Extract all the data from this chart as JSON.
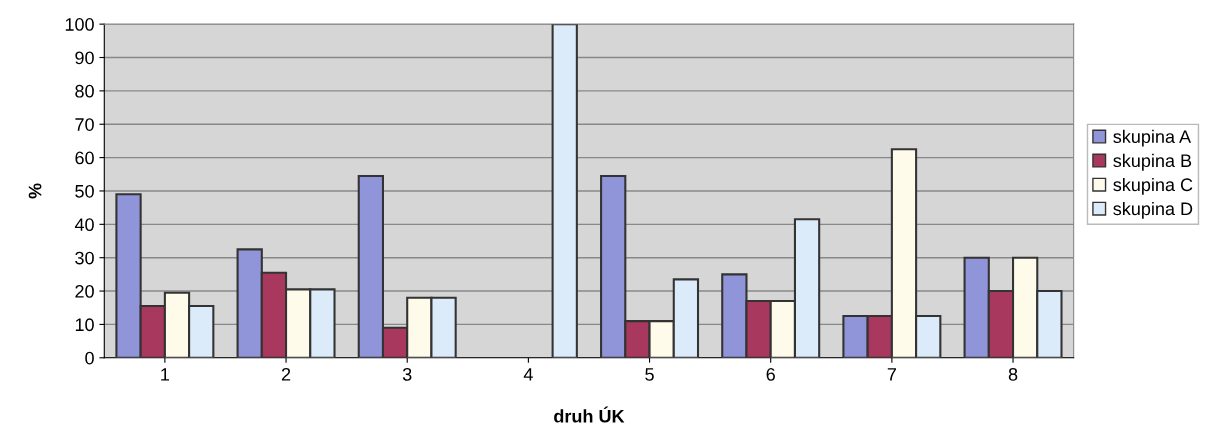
{
  "chart_data": {
    "type": "bar",
    "xlabel": "druh ÚK",
    "ylabel": "%",
    "categories": [
      "1",
      "2",
      "3",
      "4",
      "5",
      "6",
      "7",
      "8"
    ],
    "series": [
      {
        "name": "skupina A",
        "color": "#9094d8",
        "values": [
          49,
          32.5,
          54.5,
          null,
          54.5,
          25,
          12.5,
          30
        ]
      },
      {
        "name": "skupina B",
        "color": "#a8385e",
        "values": [
          15.5,
          25.5,
          9,
          null,
          11,
          17,
          12.5,
          20
        ]
      },
      {
        "name": "skupina C",
        "color": "#fffbea",
        "values": [
          19.5,
          20.5,
          18,
          null,
          11,
          17,
          62.5,
          30
        ]
      },
      {
        "name": "skupina D",
        "color": "#dcebfa",
        "values": [
          15.5,
          20.5,
          18,
          100,
          23.5,
          41.5,
          12.5,
          20
        ]
      }
    ],
    "ylim": [
      0,
      100
    ],
    "yticks": [
      0,
      10,
      20,
      30,
      40,
      50,
      60,
      70,
      80,
      90,
      100
    ],
    "grid": "y",
    "legend": "right"
  }
}
